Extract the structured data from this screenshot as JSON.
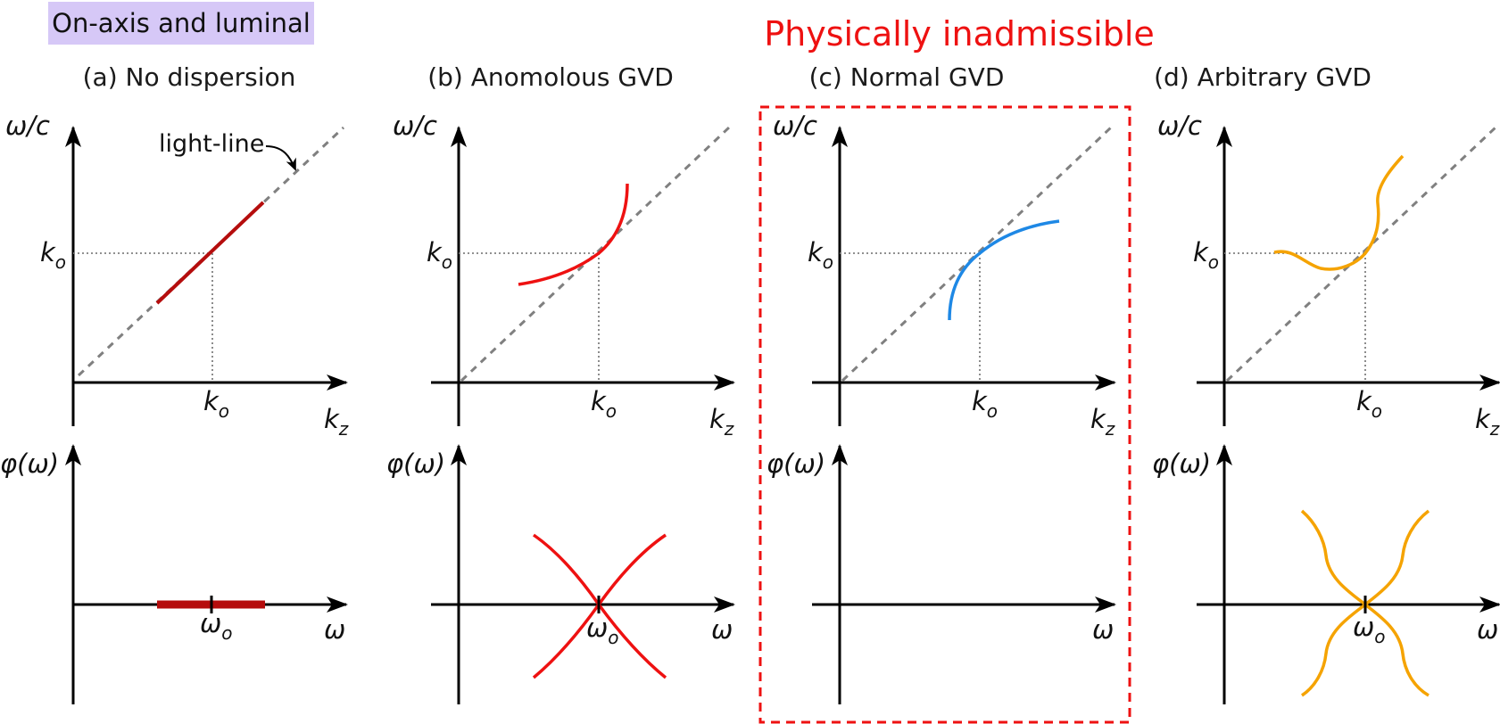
{
  "header_tag": "On-axis and luminal",
  "warning_label": "Physically inadmissible",
  "panels": [
    {
      "title": "(a) No dispersion"
    },
    {
      "title": "(b) Anomolous GVD"
    },
    {
      "title": "(c) Normal GVD"
    },
    {
      "title": "(d) Arbitrary GVD"
    }
  ],
  "annotation": "light-line",
  "top_axis": {
    "y_label": "ω/c",
    "x_label": "k",
    "x_sub": "z",
    "tick": "k",
    "tick_sub": "o"
  },
  "bottom_axis": {
    "y_label": "φ(ω)",
    "x_label": "ω",
    "tick": "ω",
    "tick_sub": "o"
  },
  "colors": {
    "dark_red": "#b50d0d",
    "red": "#ee1111",
    "blue": "#1e88e5",
    "orange": "#f5a300",
    "highlight": "#d6c8f7",
    "axis": "#000000",
    "guide": "#808080"
  }
}
